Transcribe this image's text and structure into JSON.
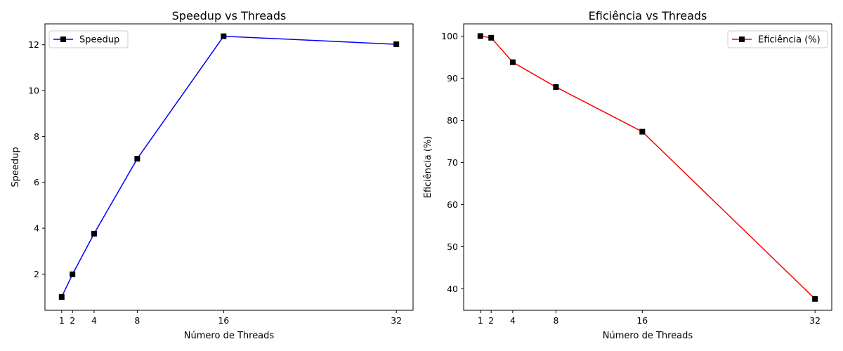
{
  "chart_data": [
    {
      "type": "line",
      "title": "Speedup vs Threads",
      "xlabel": "Número de Threads",
      "ylabel": "Speedup",
      "x": [
        1,
        2,
        4,
        8,
        16,
        32
      ],
      "xticks": [
        1,
        2,
        4,
        8,
        16,
        32
      ],
      "xlim": [
        -0.55,
        33.55
      ],
      "yticks": [
        2,
        4,
        6,
        8,
        10,
        12
      ],
      "ylim": [
        0.42,
        12.91
      ],
      "grid": false,
      "legend_position": "top-left",
      "series": [
        {
          "name": "Speedup",
          "values": [
            1.0,
            1.99,
            3.76,
            7.03,
            12.37,
            12.02
          ],
          "color": "#0000ff",
          "marker": "square",
          "marker_color": "#000000"
        }
      ]
    },
    {
      "type": "line",
      "title": "Eficiência vs Threads",
      "xlabel": "Número de Threads",
      "ylabel": "Eficiência (%)",
      "x": [
        1,
        2,
        4,
        8,
        16,
        32
      ],
      "xticks": [
        1,
        2,
        4,
        8,
        16,
        32
      ],
      "xlim": [
        -0.55,
        33.55
      ],
      "yticks": [
        40,
        50,
        60,
        70,
        80,
        90,
        100
      ],
      "ylim": [
        34.9,
        102.9
      ],
      "grid": false,
      "legend_position": "top-right",
      "series": [
        {
          "name": "Eficiência (%)",
          "values": [
            100.0,
            99.6,
            93.8,
            87.9,
            77.3,
            37.6
          ],
          "color": "#ff0000",
          "marker": "square",
          "marker_color": "#000000"
        }
      ]
    }
  ]
}
